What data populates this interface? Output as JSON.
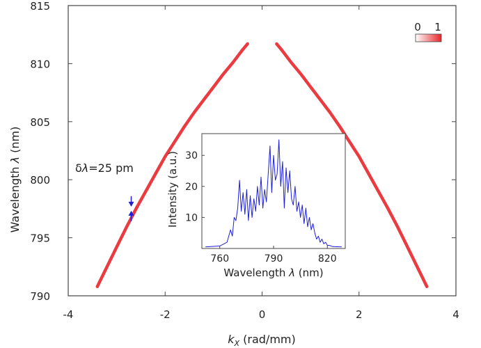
{
  "chart_data": [
    {
      "type": "line",
      "title": "",
      "xlabel_italic": "k",
      "xlabel_sub": "X",
      "xlabel_rest": " (rad/mm)",
      "ylabel_prefix": "Wavelength ",
      "ylabel_symbol": "λ",
      "ylabel_suffix": " (nm)",
      "xlim": [
        -4,
        4
      ],
      "ylim": [
        790,
        815
      ],
      "xticks": [
        "-4",
        "-2",
        "0",
        "2",
        "4"
      ],
      "yticks": [
        "815",
        "810",
        "805",
        "800",
        "795",
        "790"
      ],
      "xtick_values": [
        -4,
        -2,
        0,
        2,
        4
      ],
      "ytick_values": [
        815,
        810,
        805,
        800,
        795,
        790
      ],
      "series": [
        {
          "color": "#e8262b",
          "x": [
            -3.4,
            -3.2,
            -3.0,
            -2.8,
            -2.6,
            -2.4,
            -2.2,
            -2.0,
            -1.8,
            -1.6,
            -1.4,
            -1.2,
            -1.0,
            -0.8,
            -0.6,
            -0.4,
            -0.3,
            0.3,
            0.4,
            0.6,
            0.8,
            1.0,
            1.2,
            1.4,
            1.6,
            1.8,
            2.0,
            2.2,
            2.4,
            2.6,
            2.8,
            3.0,
            3.2,
            3.4
          ],
          "y": [
            790.8,
            792.5,
            794.2,
            795.9,
            797.5,
            799.0,
            800.5,
            802.0,
            803.3,
            804.6,
            805.8,
            806.9,
            808.0,
            809.1,
            810.1,
            811.2,
            811.7,
            811.7,
            811.2,
            810.1,
            809.1,
            808.0,
            806.9,
            805.8,
            804.6,
            803.3,
            802.0,
            800.5,
            799.0,
            797.5,
            795.9,
            794.2,
            792.5,
            790.8
          ]
        }
      ],
      "colorbar": {
        "min_label": "0",
        "max_label": "1",
        "colors": [
          "#ffffff",
          "#e8262b"
        ]
      },
      "annotation": {
        "prefix": "δ",
        "symbol": "λ",
        "text": "=25 pm",
        "x": -2.7,
        "y": 797.5,
        "color": "#1f1fd6"
      }
    },
    {
      "type": "line",
      "title": "",
      "xlabel_prefix": "Wavelength ",
      "xlabel_symbol": "λ",
      "xlabel_suffix": " (nm)",
      "ylabel": "Intensity (a.u.)",
      "xlim": [
        750,
        830
      ],
      "ylim": [
        0,
        37
      ],
      "xticks": [
        "760",
        "790",
        "820"
      ],
      "xtick_values": [
        760,
        790,
        820
      ],
      "yticks": [
        "10",
        "20",
        "30"
      ],
      "ytick_values": [
        10,
        20,
        30
      ],
      "series": [
        {
          "color": "#1f1fd6",
          "x": [
            752,
            760,
            764,
            766,
            767,
            768,
            769,
            770,
            771,
            772,
            773,
            774,
            775,
            776,
            777,
            778,
            779,
            780,
            781,
            782,
            783,
            784,
            785,
            786,
            787,
            788,
            789,
            790,
            791,
            792,
            793,
            794,
            795,
            796,
            797,
            798,
            799,
            800,
            801,
            802,
            803,
            804,
            805,
            806,
            807,
            808,
            809,
            810,
            811,
            812,
            813,
            814,
            815,
            816,
            817,
            818,
            819,
            820,
            821,
            822,
            823,
            828
          ],
          "y": [
            0.5,
            0.8,
            2,
            6,
            4,
            10,
            9,
            13,
            22,
            12,
            18,
            11,
            19,
            9,
            17,
            10,
            16,
            12,
            20,
            14,
            23,
            13,
            19,
            15,
            24,
            33,
            18,
            30,
            22,
            24,
            35,
            20,
            28,
            13,
            26,
            18,
            25,
            16,
            14,
            20,
            12,
            15,
            10,
            14,
            8,
            13,
            7,
            10,
            6,
            8,
            5,
            3,
            4,
            2,
            3,
            1.5,
            2,
            1,
            1,
            0.8,
            0.6,
            0.5
          ]
        }
      ]
    }
  ]
}
